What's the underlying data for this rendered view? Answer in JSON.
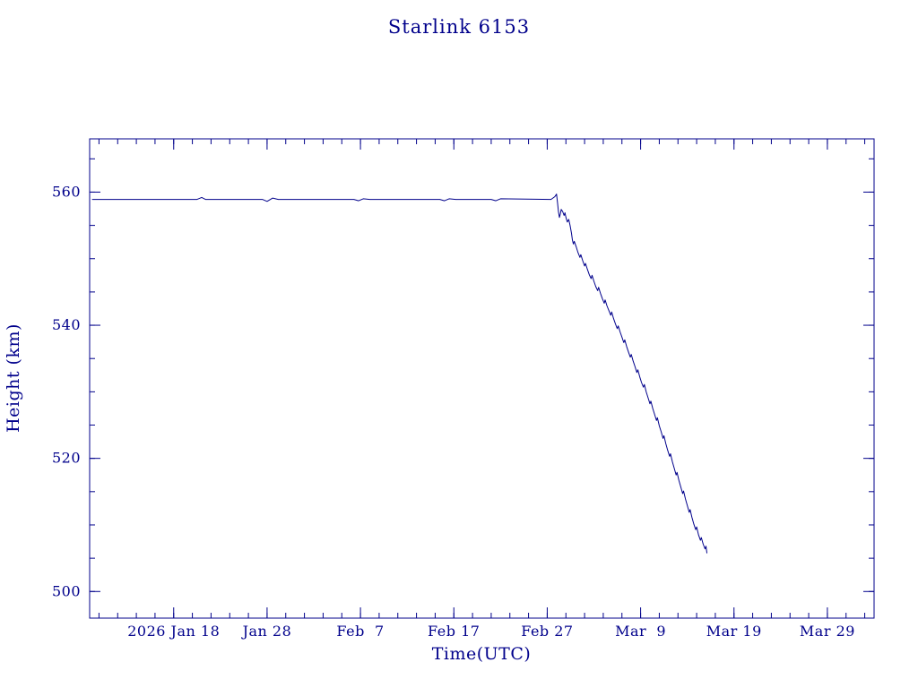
{
  "chart": {
    "accent_color": "#00008b",
    "background_color": "#ffffff"
  },
  "chart_data": {
    "type": "line",
    "title": "Starlink 6153",
    "xlabel": "Time(UTC)",
    "ylabel": "Height (km)",
    "xlim": [
      9,
      93
    ],
    "ylim": [
      496,
      568
    ],
    "x_ticks": [
      {
        "value": 18,
        "label": "2026 Jan 18"
      },
      {
        "value": 28,
        "label": "Jan 28"
      },
      {
        "value": 38,
        "label": "Feb  7"
      },
      {
        "value": 48,
        "label": "Feb 17"
      },
      {
        "value": 58,
        "label": "Feb 27"
      },
      {
        "value": 68,
        "label": "Mar  9"
      },
      {
        "value": 78,
        "label": "Mar 19"
      },
      {
        "value": 88,
        "label": "Mar 29"
      }
    ],
    "y_ticks": [
      {
        "value": 500,
        "label": "500"
      },
      {
        "value": 520,
        "label": "520"
      },
      {
        "value": 540,
        "label": "540"
      },
      {
        "value": 560,
        "label": "560"
      }
    ],
    "x_minor_step": 2,
    "y_minor_step": 5,
    "line_color": "#00008b",
    "grid": false,
    "legend": "none",
    "x_unit": "day-of-year 2026",
    "series": [
      {
        "name": "height_km",
        "points": [
          [
            9.3,
            558.9
          ],
          [
            14,
            558.9
          ],
          [
            20.5,
            558.9
          ],
          [
            21,
            559.2
          ],
          [
            21.4,
            558.9
          ],
          [
            27.5,
            558.9
          ],
          [
            28,
            558.6
          ],
          [
            28.6,
            559.1
          ],
          [
            29.2,
            558.9
          ],
          [
            37.3,
            558.9
          ],
          [
            37.8,
            558.7
          ],
          [
            38.3,
            559.0
          ],
          [
            39,
            558.9
          ],
          [
            46.5,
            558.9
          ],
          [
            47,
            558.7
          ],
          [
            47.5,
            559.0
          ],
          [
            48.2,
            558.9
          ],
          [
            52,
            558.9
          ],
          [
            52.5,
            558.7
          ],
          [
            53,
            559.0
          ],
          [
            58.4,
            558.9
          ],
          [
            58.8,
            559.3
          ],
          [
            59,
            559.7
          ],
          [
            59.1,
            558.4
          ],
          [
            59.2,
            557.1
          ],
          [
            59.3,
            556.2
          ],
          [
            59.4,
            556.7
          ],
          [
            59.5,
            557.4
          ],
          [
            59.65,
            557.1
          ],
          [
            59.8,
            556.5
          ],
          [
            59.9,
            556.9
          ],
          [
            60,
            556.2
          ],
          [
            60.15,
            555.5
          ],
          [
            60.3,
            555.9
          ],
          [
            60.45,
            555
          ],
          [
            60.6,
            553.8
          ],
          [
            60.7,
            552.8
          ],
          [
            60.8,
            552.2
          ],
          [
            60.9,
            552.6
          ],
          [
            61.1,
            551.8
          ],
          [
            61.3,
            550.9
          ],
          [
            61.5,
            550.2
          ],
          [
            61.6,
            550.6
          ],
          [
            61.8,
            549.7
          ],
          [
            62,
            548.9
          ],
          [
            62.1,
            549.3
          ],
          [
            62.3,
            548.4
          ],
          [
            62.5,
            547.6
          ],
          [
            62.7,
            547
          ],
          [
            62.8,
            547.5
          ],
          [
            63,
            546.6
          ],
          [
            63.2,
            545.8
          ],
          [
            63.4,
            545.2
          ],
          [
            63.5,
            545.7
          ],
          [
            63.7,
            544.8
          ],
          [
            63.9,
            544
          ],
          [
            64.1,
            543.3
          ],
          [
            64.2,
            543.8
          ],
          [
            64.4,
            542.9
          ],
          [
            64.6,
            542.2
          ],
          [
            64.8,
            541.5
          ],
          [
            64.9,
            542
          ],
          [
            65.1,
            541
          ],
          [
            65.3,
            540.2
          ],
          [
            65.5,
            539.5
          ],
          [
            65.6,
            539.9
          ],
          [
            65.8,
            539
          ],
          [
            66,
            538.2
          ],
          [
            66.2,
            537.4
          ],
          [
            66.3,
            537.8
          ],
          [
            66.5,
            536.8
          ],
          [
            66.7,
            536
          ],
          [
            66.9,
            535.2
          ],
          [
            67,
            535.6
          ],
          [
            67.2,
            534.6
          ],
          [
            67.4,
            533.8
          ],
          [
            67.6,
            532.9
          ],
          [
            67.7,
            533.3
          ],
          [
            67.9,
            532.3
          ],
          [
            68.1,
            531.4
          ],
          [
            68.3,
            530.7
          ],
          [
            68.4,
            531.1
          ],
          [
            68.6,
            530
          ],
          [
            68.8,
            529.1
          ],
          [
            69,
            528.2
          ],
          [
            69.1,
            528.6
          ],
          [
            69.3,
            527.5
          ],
          [
            69.5,
            526.6
          ],
          [
            69.7,
            525.7
          ],
          [
            69.8,
            526.1
          ],
          [
            70,
            524.9
          ],
          [
            70.2,
            524
          ],
          [
            70.4,
            523
          ],
          [
            70.5,
            523.4
          ],
          [
            70.7,
            522.2
          ],
          [
            70.9,
            521.2
          ],
          [
            71.1,
            520.3
          ],
          [
            71.2,
            520.7
          ],
          [
            71.4,
            519.5
          ],
          [
            71.6,
            518.5
          ],
          [
            71.8,
            517.5
          ],
          [
            71.9,
            517.9
          ],
          [
            72.1,
            516.7
          ],
          [
            72.3,
            515.7
          ],
          [
            72.5,
            514.7
          ],
          [
            72.6,
            515.1
          ],
          [
            72.8,
            513.9
          ],
          [
            73,
            512.9
          ],
          [
            73.2,
            511.9
          ],
          [
            73.3,
            512.3
          ],
          [
            73.5,
            511.1
          ],
          [
            73.7,
            510.1
          ],
          [
            73.9,
            509.3
          ],
          [
            74,
            509.7
          ],
          [
            74.2,
            508.5
          ],
          [
            74.4,
            507.7
          ],
          [
            74.5,
            508.1
          ],
          [
            74.7,
            507.1
          ],
          [
            74.9,
            506.4
          ],
          [
            75.0,
            506.8
          ],
          [
            75.1,
            505.8
          ]
        ]
      }
    ]
  }
}
